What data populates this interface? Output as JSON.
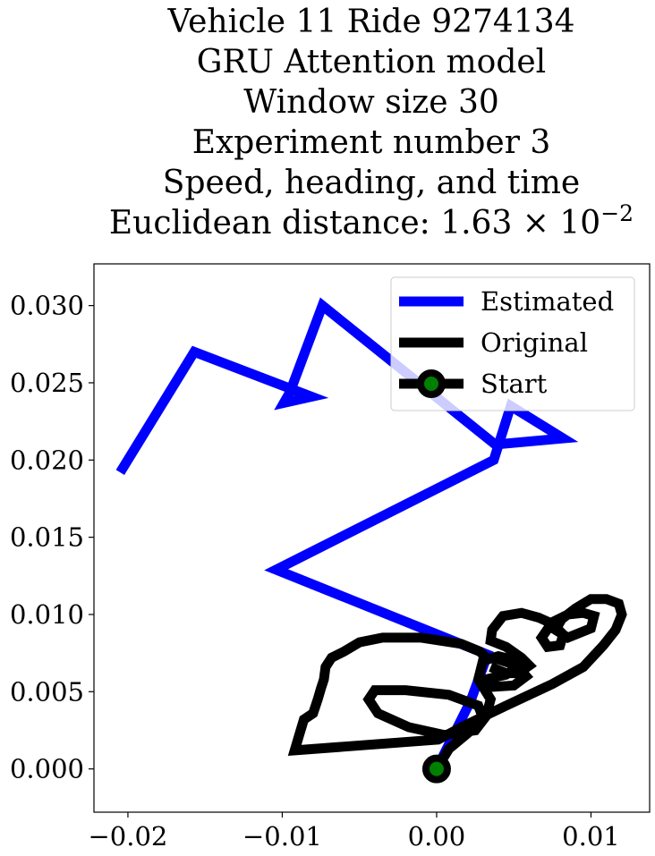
{
  "chart_data": {
    "type": "line",
    "title_lines": [
      "Vehicle 11 Ride 9274134",
      "GRU Attention model",
      "Window size 30",
      "Experiment number 3",
      "Speed, heading, and time"
    ],
    "title_last_prefix": "Euclidean distance: 1.63",
    "title_last_base": "× 10",
    "title_last_exp": "−2",
    "xlim": [
      -0.0222,
      0.0138
    ],
    "ylim": [
      -0.0028,
      0.0327
    ],
    "xticks": [
      -0.02,
      -0.01,
      0.0,
      0.01
    ],
    "xtick_labels": [
      "−0.02",
      "−0.01",
      "0.00",
      "0.01"
    ],
    "yticks": [
      0.0,
      0.005,
      0.01,
      0.015,
      0.02,
      0.025,
      0.03
    ],
    "ytick_labels": [
      "0.000",
      "0.005",
      "0.010",
      "0.015",
      "0.020",
      "0.025",
      "0.030"
    ],
    "grid": false,
    "legend_position": "top-right",
    "series": [
      {
        "name": "Estimated",
        "color": "#0000ff",
        "x": [
          0.0,
          0.0022,
          0.0033,
          -0.0104,
          0.0037,
          0.0048,
          0.0082,
          0.0038,
          -0.0074,
          -0.0095,
          -0.0099,
          -0.0081,
          -0.0157,
          -0.0205
        ],
        "y": [
          0.0,
          0.0044,
          0.0074,
          0.0129,
          0.02,
          0.0235,
          0.0214,
          0.021,
          0.03,
          0.0244,
          0.0237,
          0.0241,
          0.027,
          0.0192
        ]
      },
      {
        "name": "Original",
        "color": "#000000",
        "x": [
          0.0,
          0.0008,
          0.002,
          0.003,
          0.0027,
          0.0008,
          -0.002,
          -0.004,
          -0.0044,
          -0.0038,
          -0.0018,
          0.0005,
          0.0025,
          0.0032,
          0.0035,
          0.0027,
          0.003,
          0.004,
          0.0048,
          0.0052,
          0.0045,
          0.0032,
          0.0035,
          0.005,
          0.0058,
          0.0052,
          0.004,
          0.0032,
          0.0028,
          0.0016,
          -0.001,
          -0.0035,
          -0.005,
          -0.006,
          -0.0068,
          -0.0072,
          -0.0073,
          -0.0075,
          -0.0077,
          -0.008,
          -0.0086,
          -0.0089,
          -0.0092,
          0.0001,
          0.0018,
          0.0045,
          0.0075,
          0.0095,
          0.0108,
          0.0116,
          0.012,
          0.0118,
          0.011,
          0.01,
          0.009,
          0.0081,
          0.0077,
          0.0085,
          0.01,
          0.0102,
          0.0095,
          0.0085,
          0.0075,
          0.0068,
          0.0072,
          0.008,
          0.0082,
          0.0075,
          0.0066,
          0.0055,
          0.0043,
          0.0036,
          0.0035,
          0.0045,
          0.0055,
          0.006,
          0.0053,
          0.0045,
          0.0035
        ],
        "y": [
          0.0,
          0.0013,
          0.0023,
          0.0033,
          0.0041,
          0.0048,
          0.0051,
          0.0051,
          0.0045,
          0.0036,
          0.0027,
          0.0022,
          0.0025,
          0.0034,
          0.0045,
          0.0058,
          0.007,
          0.0073,
          0.0071,
          0.0066,
          0.0061,
          0.0058,
          0.0053,
          0.0054,
          0.006,
          0.0067,
          0.0071,
          0.0072,
          0.0076,
          0.0081,
          0.0085,
          0.0085,
          0.0082,
          0.0076,
          0.0072,
          0.0066,
          0.0058,
          0.0052,
          0.0045,
          0.0036,
          0.0032,
          0.0022,
          0.0012,
          0.0019,
          0.0028,
          0.0041,
          0.0055,
          0.0066,
          0.008,
          0.009,
          0.01,
          0.0107,
          0.011,
          0.011,
          0.0104,
          0.0097,
          0.009,
          0.0085,
          0.0091,
          0.0099,
          0.0101,
          0.01,
          0.0095,
          0.0085,
          0.0079,
          0.008,
          0.0087,
          0.0094,
          0.0098,
          0.0101,
          0.0099,
          0.009,
          0.0083,
          0.0079,
          0.0072,
          0.0067,
          0.0062,
          0.0062,
          0.0066
        ]
      }
    ],
    "start": {
      "name": "Start",
      "x": 0.0,
      "y": 0.0,
      "marker_edge": "#000000",
      "marker_face": "#008000"
    }
  }
}
